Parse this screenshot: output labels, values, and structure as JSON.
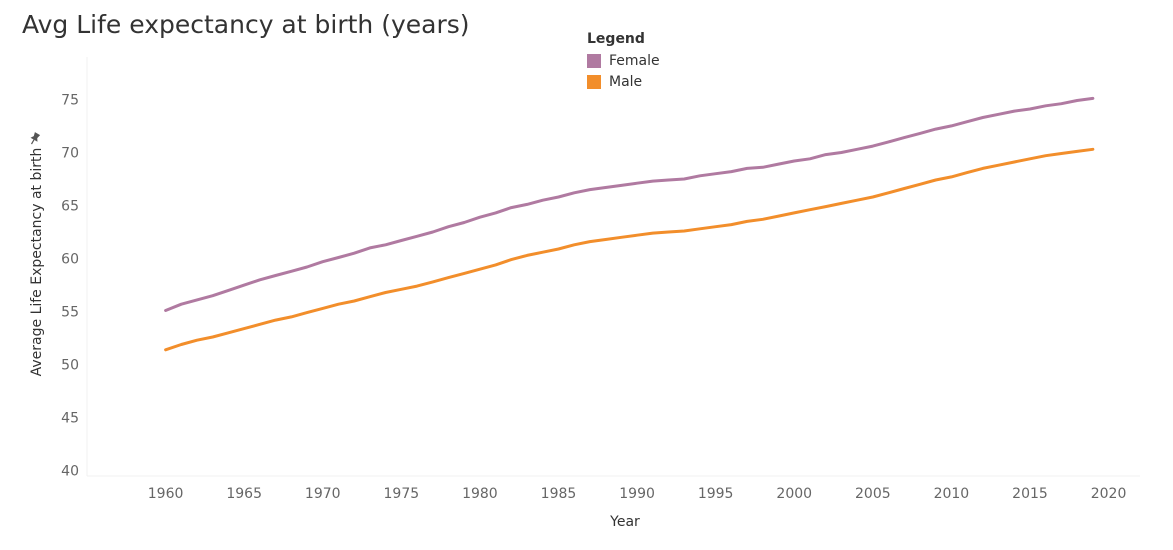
{
  "chart_data": {
    "type": "line",
    "title": "Avg Life expectancy at birth (years)",
    "xlabel": "Year",
    "ylabel": "Average Life Expectancy at birth",
    "xlim": [
      1955,
      2022
    ],
    "ylim": [
      39.5,
      79
    ],
    "x_ticks": [
      1960,
      1965,
      1970,
      1975,
      1980,
      1985,
      1990,
      1995,
      2000,
      2005,
      2010,
      2015,
      2020
    ],
    "y_ticks": [
      40,
      45,
      50,
      55,
      60,
      65,
      70,
      75
    ],
    "legend": {
      "title": "Legend",
      "placement": "top-center"
    },
    "x": [
      1960,
      1961,
      1962,
      1963,
      1964,
      1965,
      1966,
      1967,
      1968,
      1969,
      1970,
      1971,
      1972,
      1973,
      1974,
      1975,
      1976,
      1977,
      1978,
      1979,
      1980,
      1981,
      1982,
      1983,
      1984,
      1985,
      1986,
      1987,
      1988,
      1989,
      1990,
      1991,
      1992,
      1993,
      1994,
      1995,
      1996,
      1997,
      1998,
      1999,
      2000,
      2001,
      2002,
      2003,
      2004,
      2005,
      2006,
      2007,
      2008,
      2009,
      2010,
      2011,
      2012,
      2013,
      2014,
      2015,
      2016,
      2017,
      2018,
      2019
    ],
    "series": [
      {
        "name": "Female",
        "color": "#b07aa1",
        "values": [
          55.1,
          55.7,
          56.1,
          56.5,
          57.0,
          57.5,
          58.0,
          58.4,
          58.8,
          59.2,
          59.7,
          60.1,
          60.5,
          61.0,
          61.3,
          61.7,
          62.1,
          62.5,
          63.0,
          63.4,
          63.9,
          64.3,
          64.8,
          65.1,
          65.5,
          65.8,
          66.2,
          66.5,
          66.7,
          66.9,
          67.1,
          67.3,
          67.4,
          67.5,
          67.8,
          68.0,
          68.2,
          68.5,
          68.6,
          68.9,
          69.2,
          69.4,
          69.8,
          70.0,
          70.3,
          70.6,
          71.0,
          71.4,
          71.8,
          72.2,
          72.5,
          72.9,
          73.3,
          73.6,
          73.9,
          74.1,
          74.4,
          74.6,
          74.9,
          75.1
        ]
      },
      {
        "name": "Male",
        "color": "#f28e2b",
        "values": [
          51.4,
          51.9,
          52.3,
          52.6,
          53.0,
          53.4,
          53.8,
          54.2,
          54.5,
          54.9,
          55.3,
          55.7,
          56.0,
          56.4,
          56.8,
          57.1,
          57.4,
          57.8,
          58.2,
          58.6,
          59.0,
          59.4,
          59.9,
          60.3,
          60.6,
          60.9,
          61.3,
          61.6,
          61.8,
          62.0,
          62.2,
          62.4,
          62.5,
          62.6,
          62.8,
          63.0,
          63.2,
          63.5,
          63.7,
          64.0,
          64.3,
          64.6,
          64.9,
          65.2,
          65.5,
          65.8,
          66.2,
          66.6,
          67.0,
          67.4,
          67.7,
          68.1,
          68.5,
          68.8,
          69.1,
          69.4,
          69.7,
          69.9,
          70.1,
          70.3
        ]
      }
    ]
  }
}
